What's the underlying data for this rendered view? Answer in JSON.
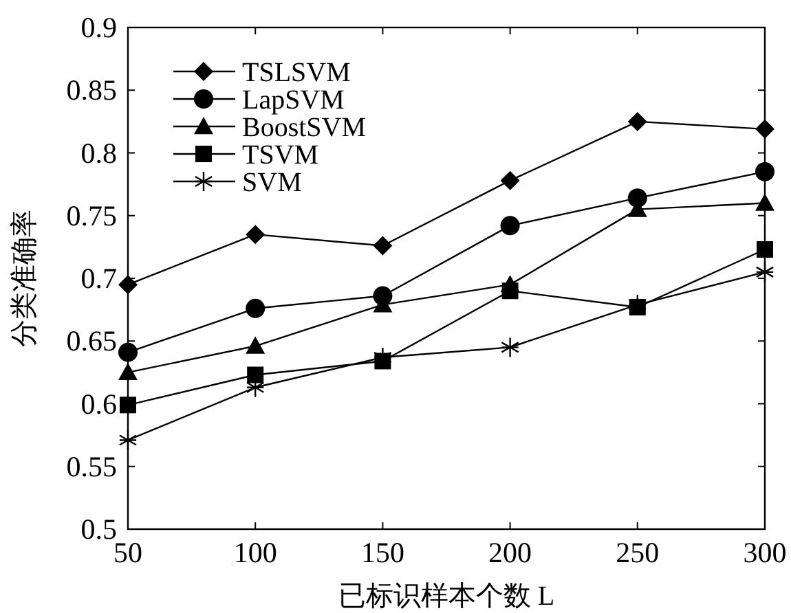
{
  "chart_data": {
    "type": "line",
    "xlabel": "已标识样本个数 L",
    "ylabel": "分类准确率",
    "x": [
      50,
      100,
      150,
      200,
      250,
      300
    ],
    "xlim": [
      50,
      300
    ],
    "xticks": [
      50,
      100,
      150,
      200,
      250,
      300
    ],
    "ylim": [
      0.5,
      0.9
    ],
    "yticks": [
      0.5,
      0.55,
      0.6,
      0.65,
      0.7,
      0.75,
      0.8,
      0.85,
      0.9
    ],
    "legend": "top left",
    "grid": false,
    "line_style": "solid",
    "series": [
      {
        "name": "TSLSVM",
        "color": "#000000",
        "marker": "diamond",
        "values": [
          0.695,
          0.735,
          0.726,
          0.778,
          0.825,
          0.819
        ]
      },
      {
        "name": "LapSVM",
        "color": "#000000",
        "marker": "circle",
        "values": [
          0.641,
          0.676,
          0.686,
          0.742,
          0.764,
          0.785
        ]
      },
      {
        "name": "BoostSVM",
        "color": "#000000",
        "marker": "triangle",
        "values": [
          0.625,
          0.646,
          0.679,
          0.695,
          0.755,
          0.76
        ]
      },
      {
        "name": "TSVM",
        "color": "#000000",
        "marker": "square",
        "values": [
          0.599,
          0.623,
          0.634,
          0.69,
          0.677,
          0.723
        ]
      },
      {
        "name": "SVM",
        "color": "#000000",
        "marker": "cross",
        "values": [
          0.571,
          0.613,
          0.637,
          0.645,
          0.679,
          0.705
        ]
      }
    ]
  }
}
